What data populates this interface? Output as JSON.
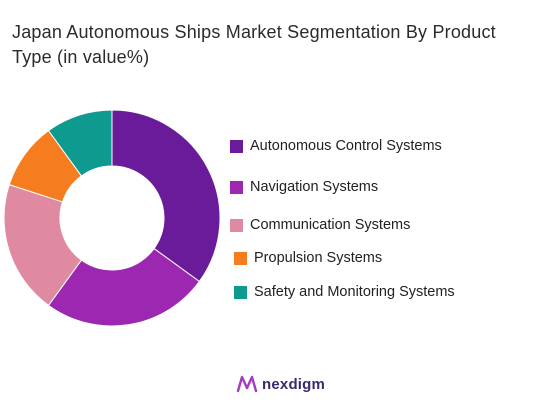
{
  "title": "Japan Autonomous Ships Market Segmentation By Product Type (in value%)",
  "chart_data": {
    "type": "pie",
    "donut": true,
    "title": "Japan Autonomous Ships Market Segmentation By Product Type (in value%)",
    "categories": [
      "Autonomous Control Systems",
      "Navigation Systems",
      "Communication Systems",
      "Propulsion Systems",
      "Safety and Monitoring Systems"
    ],
    "values": [
      35,
      25,
      20,
      10,
      10
    ],
    "colors": [
      "#6a1b9a",
      "#9c27b0",
      "#e08aa2",
      "#f57c1f",
      "#0f9a8f"
    ],
    "legend_position": "right"
  },
  "brand": {
    "name": "nexdigm",
    "icon": "nexdigm-logo-icon"
  }
}
